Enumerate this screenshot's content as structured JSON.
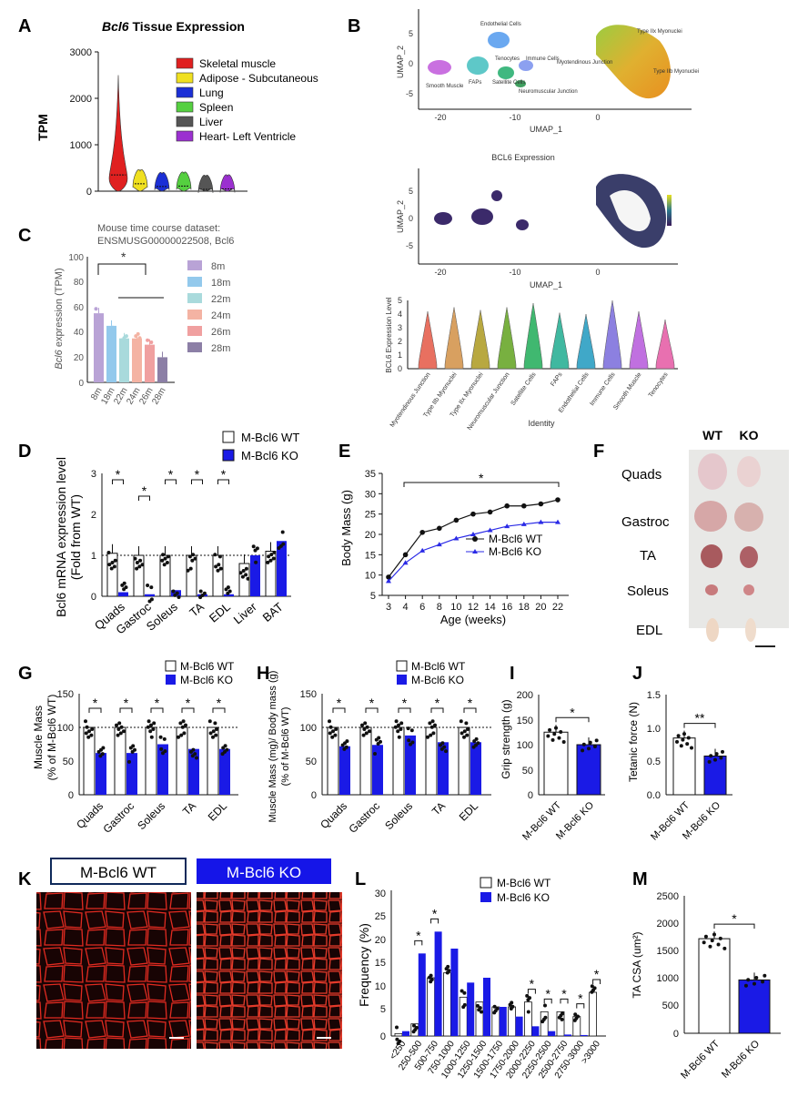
{
  "panels": {
    "A": {
      "letter": "A",
      "title_gene": "Bcl6",
      "title_rest": " Tissue Expression",
      "ylabel": "TPM",
      "yticks": [
        "3000",
        "2000",
        "1000",
        "0"
      ],
      "legend": [
        {
          "label": "Skeletal muscle",
          "color": "#e02020"
        },
        {
          "label": "Adipose - Subcutaneous",
          "color": "#f0e020"
        },
        {
          "label": "Lung",
          "color": "#1b2fd6"
        },
        {
          "label": "Spleen",
          "color": "#55d040"
        },
        {
          "label": "Liver",
          "color": "#555555"
        },
        {
          "label": "Heart- Left Ventricle",
          "color": "#9b30d0"
        }
      ]
    },
    "B": {
      "letter": "B",
      "umap_x": "UMAP_1",
      "umap_y": "UMAP_2",
      "xticks": [
        "-20",
        "-10",
        "0"
      ],
      "yticks": [
        "5",
        "0",
        "-5"
      ],
      "clusters": [
        "Endothelial Cells",
        "Type IIx Myonuclei",
        "Myotendinous Junction",
        "Tenocytes",
        "Immune Cells",
        "FAPs",
        "Satellite Cells",
        "Neuromuscular Junction",
        "Smooth Muscle",
        "Type IIb Myonuclei"
      ],
      "expr_title": "BCL6 Expression",
      "violin_ylabel": "BCL6 Expression Level",
      "violin_yticks": [
        "5",
        "4",
        "3",
        "2",
        "1",
        "0"
      ],
      "violin_xlabel": "Identity",
      "violin_groups": [
        "Myotendinous Junction",
        "Type IIb Myonuclei",
        "Type IIx Myonuclei",
        "Neuromuscular Junction",
        "Satellite Cells",
        "FAPs",
        "Endothelial Cells",
        "Immune Cells",
        "Smooth Muscle",
        "Tenocytes"
      ]
    },
    "C": {
      "letter": "C",
      "title1": "Mouse time course dataset:",
      "title2": "ENSMUSG00000022508, Bcl6",
      "ylabel_gene": "Bcl6",
      "ylabel_rest": " expression (TPM)",
      "yticks": [
        "100",
        "80",
        "60",
        "40",
        "20",
        "0"
      ],
      "sig": "*",
      "groups": [
        "8m",
        "18m",
        "22m",
        "24m",
        "26m",
        "28m"
      ],
      "colors": [
        "#b9a3d6",
        "#93c9ec",
        "#a9dadc",
        "#f4b3a3",
        "#f0a0a0",
        "#8c7fa6"
      ]
    },
    "D": {
      "letter": "D",
      "ylabel1": "Bcl6 mRNA expression level",
      "ylabel2": "(Fold from WT)",
      "yticks": [
        "3",
        "2",
        "1",
        "0"
      ],
      "legend_wt": "M-Bcl6 WT",
      "legend_ko": "M-Bcl6 KO",
      "categories": [
        "Quads",
        "Gastroc",
        "Soleus",
        "TA",
        "EDL",
        "Liver",
        "BAT"
      ],
      "sig": "*"
    },
    "E": {
      "letter": "E",
      "ylabel": "Body Mass (g)",
      "xlabel": "Age (weeks)",
      "yticks": [
        "35",
        "30",
        "25",
        "20",
        "15",
        "10",
        "5"
      ],
      "xticks": [
        "3",
        "4",
        "6",
        "8",
        "10",
        "12",
        "14",
        "16",
        "18",
        "20",
        "22"
      ],
      "legend_wt": "M-Bcl6 WT",
      "legend_ko": "M-Bcl6 KO",
      "sig": "*"
    },
    "F": {
      "letter": "F",
      "col_wt": "WT",
      "col_ko": "KO",
      "rows": [
        "Quads",
        "Gastroc",
        "TA",
        "Soleus",
        "EDL"
      ]
    },
    "G": {
      "letter": "G",
      "ylabel1": "Muscle Mass",
      "ylabel2": "(% of M-Bcl6 WT)",
      "yticks": [
        "150",
        "100",
        "50",
        "0"
      ],
      "legend_wt": "M-Bcl6 WT",
      "legend_ko": "M-Bcl6 KO",
      "categories": [
        "Quads",
        "Gastroc",
        "Soleus",
        "TA",
        "EDL"
      ],
      "sig": "*"
    },
    "H": {
      "letter": "H",
      "ylabel1": "Muscle Mass (mg)/ Body mass (g)",
      "ylabel2": "(% of M-Bcl6 WT)",
      "yticks": [
        "150",
        "100",
        "50",
        "0"
      ],
      "legend_wt": "M-Bcl6 WT",
      "legend_ko": "M-Bcl6 KO",
      "categories": [
        "Quads",
        "Gastroc",
        "Soleus",
        "TA",
        "EDL"
      ],
      "sig": "*"
    },
    "I": {
      "letter": "I",
      "ylabel": "Grip strength (g)",
      "yticks": [
        "200",
        "150",
        "100",
        "50",
        "0"
      ],
      "categories": [
        "M-Bcl6 WT",
        "M-Bcl6 KO"
      ],
      "sig": "*"
    },
    "J": {
      "letter": "J",
      "ylabel": "Tetanic force (N)",
      "yticks": [
        "1.5",
        "1.0",
        "0.5",
        "0.0"
      ],
      "categories": [
        "M-Bcl6 WT",
        "M-Bcl6 KO"
      ],
      "sig": "**"
    },
    "K": {
      "letter": "K",
      "label_wt": "M-Bcl6 WT",
      "label_ko": "M-Bcl6 KO"
    },
    "L": {
      "letter": "L",
      "ylabel": "Frequency (%)",
      "yticks": [
        "30",
        "25",
        "20",
        "15",
        "10",
        "5",
        "0"
      ],
      "legend_wt": "M-Bcl6 WT",
      "legend_ko": "M-Bcl6 KO",
      "categories": [
        "<250",
        "250-500",
        "500-750",
        "750-1000",
        "1000-1250",
        "1250-1500",
        "1500-1750",
        "1750-2000",
        "2000-2250",
        "2250-2500",
        "2500-2750",
        "2750-3000",
        ">3000"
      ],
      "sig": "*"
    },
    "M": {
      "letter": "M",
      "ylabel": "TA CSA (um²)",
      "yticks": [
        "2500",
        "2000",
        "1500",
        "1000",
        "500",
        "0"
      ],
      "categories": [
        "M-Bcl6 WT",
        "M-Bcl6 KO"
      ],
      "sig": "*"
    }
  },
  "chart_data": [
    {
      "panel": "A",
      "type": "violin",
      "ylim": [
        0,
        3000
      ],
      "series": [
        {
          "name": "Skeletal muscle",
          "median": 350
        },
        {
          "name": "Adipose - Subcutaneous",
          "median": 160
        },
        {
          "name": "Lung",
          "median": 100
        },
        {
          "name": "Spleen",
          "median": 110
        },
        {
          "name": "Liver",
          "median": 40
        },
        {
          "name": "Heart- Left Ventricle",
          "median": 50
        }
      ]
    },
    {
      "panel": "C",
      "type": "bar",
      "ylim": [
        0,
        100
      ],
      "categories": [
        "8m",
        "18m",
        "22m",
        "24m",
        "26m",
        "28m"
      ],
      "values": [
        55,
        45,
        35,
        35,
        30,
        20
      ]
    },
    {
      "panel": "D",
      "type": "bar",
      "ylim": [
        0,
        3
      ],
      "categories": [
        "Quads",
        "Gastroc",
        "Soleus",
        "TA",
        "EDL",
        "Liver",
        "BAT"
      ],
      "series": [
        {
          "name": "M-Bcl6 WT",
          "values": [
            1.05,
            1.0,
            1.0,
            1.0,
            1.0,
            0.8,
            1.1
          ]
        },
        {
          "name": "M-Bcl6 KO",
          "values": [
            0.1,
            0.05,
            0.15,
            0.05,
            0.05,
            1.0,
            1.35
          ]
        }
      ]
    },
    {
      "panel": "E",
      "type": "line",
      "ylim": [
        5,
        35
      ],
      "x": [
        3,
        4,
        6,
        8,
        10,
        12,
        14,
        16,
        18,
        20,
        22
      ],
      "series": [
        {
          "name": "M-Bcl6 WT",
          "values": [
            9.5,
            15,
            20.5,
            21.5,
            23.5,
            25,
            25.5,
            27,
            27,
            27.5,
            28.5
          ]
        },
        {
          "name": "M-Bcl6 KO",
          "values": [
            8.5,
            13,
            16,
            17.5,
            19,
            20,
            21,
            22,
            22.5,
            23,
            23
          ]
        }
      ]
    },
    {
      "panel": "G",
      "type": "bar",
      "ylim": [
        0,
        150
      ],
      "categories": [
        "Quads",
        "Gastroc",
        "Soleus",
        "TA",
        "EDL"
      ],
      "series": [
        {
          "name": "M-Bcl6 WT",
          "values": [
            100,
            100,
            100,
            100,
            100
          ]
        },
        {
          "name": "M-Bcl6 KO",
          "values": [
            62,
            62,
            75,
            68,
            68
          ]
        }
      ]
    },
    {
      "panel": "H",
      "type": "bar",
      "ylim": [
        0,
        150
      ],
      "categories": [
        "Quads",
        "Gastroc",
        "Soleus",
        "TA",
        "EDL"
      ],
      "series": [
        {
          "name": "M-Bcl6 WT",
          "values": [
            100,
            100,
            100,
            100,
            100
          ]
        },
        {
          "name": "M-Bcl6 KO",
          "values": [
            72,
            74,
            88,
            78,
            78
          ]
        }
      ]
    },
    {
      "panel": "I",
      "type": "bar",
      "ylim": [
        0,
        200
      ],
      "categories": [
        "M-Bcl6 WT",
        "M-Bcl6 KO"
      ],
      "values": [
        125,
        100
      ]
    },
    {
      "panel": "J",
      "type": "bar",
      "ylim": [
        0,
        1.5
      ],
      "categories": [
        "M-Bcl6 WT",
        "M-Bcl6 KO"
      ],
      "values": [
        0.85,
        0.58
      ]
    },
    {
      "panel": "L",
      "type": "bar",
      "ylim": [
        0,
        30
      ],
      "categories": [
        "<250",
        "250-500",
        "500-750",
        "750-1000",
        "1000-1250",
        "1250-1500",
        "1500-1750",
        "1750-2000",
        "2000-2250",
        "2250-2500",
        "2500-2750",
        "2750-3000",
        ">3000"
      ],
      "series": [
        {
          "name": "M-Bcl6 WT",
          "values": [
            0.5,
            2.5,
            12,
            13,
            8,
            7,
            6,
            6,
            7,
            5,
            5,
            4,
            9
          ]
        },
        {
          "name": "M-Bcl6 KO",
          "values": [
            1,
            17,
            21.5,
            18,
            11,
            12,
            6,
            4,
            2,
            1,
            0.3,
            0.2,
            0
          ]
        }
      ]
    },
    {
      "panel": "M",
      "type": "bar",
      "ylim": [
        0,
        2500
      ],
      "categories": [
        "M-Bcl6 WT",
        "M-Bcl6 KO"
      ],
      "values": [
        1720,
        970
      ]
    }
  ]
}
